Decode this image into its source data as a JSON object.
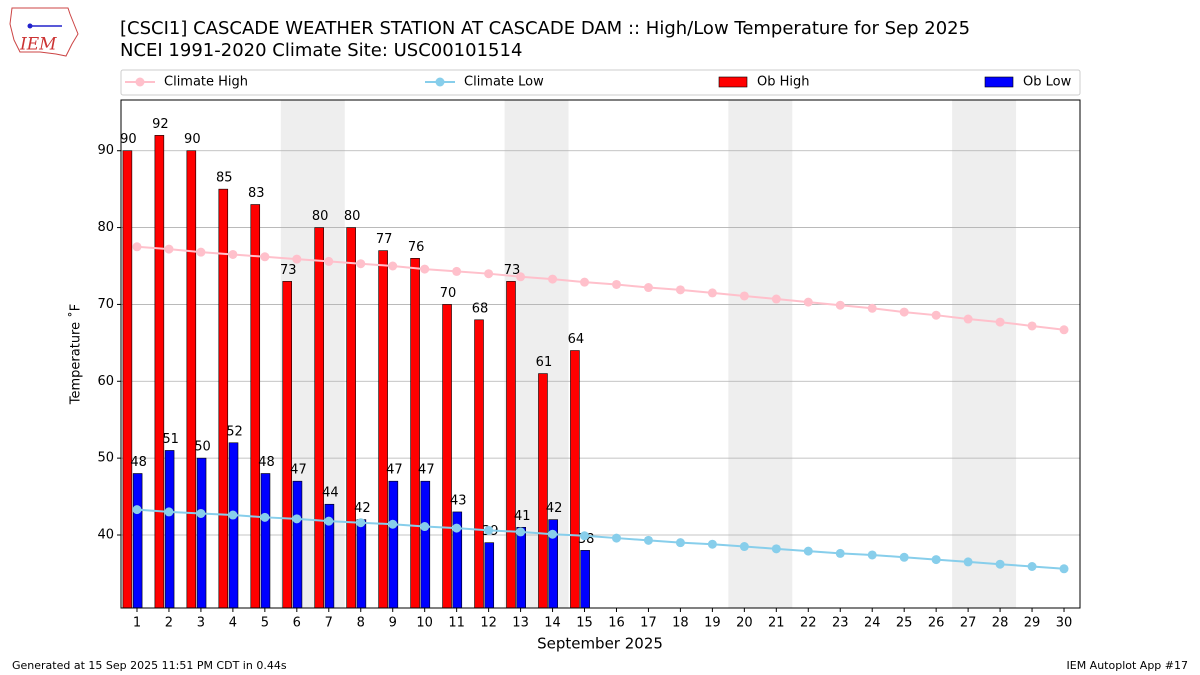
{
  "logo": "IEM",
  "footer_left": "Generated at 15 Sep 2025 11:51 PM CDT in 0.44s",
  "footer_right": "IEM Autoplot App #17",
  "chart_data": {
    "type": "bar",
    "title": "[CSCI1] CASCADE WEATHER STATION AT CASCADE DAM :: High/Low Temperature for Sep 2025",
    "subtitle": "NCEI 1991-2020 Climate Site: USC00101514",
    "xlabel": "September 2025",
    "ylabel": "Temperature ˚F",
    "x": [
      1,
      2,
      3,
      4,
      5,
      6,
      7,
      8,
      9,
      10,
      11,
      12,
      13,
      14,
      15,
      16,
      17,
      18,
      19,
      20,
      21,
      22,
      23,
      24,
      25,
      26,
      27,
      28,
      29,
      30
    ],
    "xlim": [
      0.5,
      30.5
    ],
    "xticks": [
      1,
      2,
      3,
      4,
      5,
      6,
      7,
      8,
      9,
      10,
      11,
      12,
      13,
      14,
      15,
      16,
      17,
      18,
      19,
      20,
      21,
      22,
      23,
      24,
      25,
      26,
      27,
      28,
      29,
      30
    ],
    "ylim": [
      30.5,
      96.6
    ],
    "yticks": [
      40,
      50,
      60,
      70,
      80,
      90
    ],
    "grid": true,
    "legend": "top",
    "shaded_ranges": [
      [
        5.5,
        7.5
      ],
      [
        12.5,
        14.5
      ],
      [
        19.5,
        21.5
      ],
      [
        26.5,
        28.5
      ]
    ],
    "shade_color": "#eeeeee",
    "series": [
      {
        "name": "Climate High",
        "type": "line",
        "color": "#ffc0cb",
        "values": [
          77.5,
          77.2,
          76.8,
          76.5,
          76.2,
          75.9,
          75.6,
          75.3,
          75.0,
          74.6,
          74.3,
          74.0,
          73.6,
          73.3,
          72.9,
          72.6,
          72.2,
          71.9,
          71.5,
          71.1,
          70.7,
          70.3,
          69.9,
          69.5,
          69.0,
          68.6,
          68.1,
          67.7,
          67.2,
          66.7
        ]
      },
      {
        "name": "Climate Low",
        "type": "line",
        "color": "#87ceeb",
        "values": [
          43.3,
          43.0,
          42.8,
          42.6,
          42.3,
          42.1,
          41.8,
          41.6,
          41.4,
          41.1,
          40.9,
          40.6,
          40.4,
          40.1,
          39.9,
          39.6,
          39.3,
          39.0,
          38.8,
          38.5,
          38.2,
          37.9,
          37.6,
          37.4,
          37.1,
          36.8,
          36.5,
          36.2,
          35.9,
          35.6
        ]
      },
      {
        "name": "Ob High",
        "type": "bar",
        "color": "#ff0000",
        "values": [
          90,
          92,
          90,
          85,
          83,
          73,
          80,
          80,
          77,
          76,
          70,
          68,
          73,
          61,
          64,
          null,
          null,
          null,
          null,
          null,
          null,
          null,
          null,
          null,
          null,
          null,
          null,
          null,
          null,
          null
        ]
      },
      {
        "name": "Ob Low",
        "type": "bar",
        "color": "#0000ff",
        "values": [
          48,
          51,
          50,
          52,
          48,
          47,
          44,
          42,
          47,
          47,
          43,
          39,
          41,
          42,
          38,
          null,
          null,
          null,
          null,
          null,
          null,
          null,
          null,
          null,
          null,
          null,
          null,
          null,
          null,
          null
        ]
      }
    ]
  }
}
